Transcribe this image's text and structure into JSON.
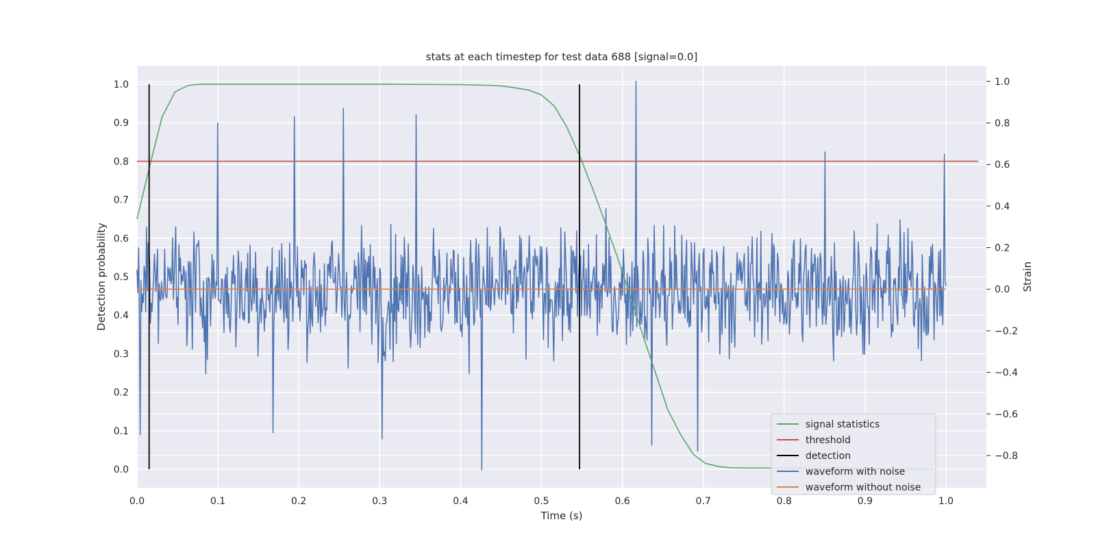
{
  "chart_data": {
    "type": "line",
    "title": "stats at each timestep for test data 688 [signal=0.0]",
    "xlabel": "Time (s)",
    "ylabel": "Detection probability",
    "y2label": "Strain",
    "xlim": [
      0.0,
      1.05
    ],
    "ylim": [
      -0.048,
      1.048
    ],
    "y2lim": [
      -0.955,
      1.075
    ],
    "x_ticks": [
      "0.0",
      "0.1",
      "0.2",
      "0.3",
      "0.4",
      "0.5",
      "0.6",
      "0.7",
      "0.8",
      "0.9",
      "1.0"
    ],
    "y_ticks": [
      "0.0",
      "0.1",
      "0.2",
      "0.3",
      "0.4",
      "0.5",
      "0.6",
      "0.7",
      "0.8",
      "0.9",
      "1.0"
    ],
    "y2_ticks": [
      "−0.8",
      "−0.6",
      "−0.4",
      "−0.2",
      "0.0",
      "0.2",
      "0.4",
      "0.6",
      "0.8",
      "1.0"
    ],
    "grid": true,
    "legend_position": "lower right",
    "legend": [
      {
        "label": "signal statistics",
        "color": "#55a868"
      },
      {
        "label": "threshold",
        "color": "#c44e52"
      },
      {
        "label": "detection",
        "color": "#000000"
      },
      {
        "label": "waveform with noise",
        "color": "#4c72b0"
      },
      {
        "label": "waveform without noise",
        "color": "#dd8452"
      }
    ],
    "series": [
      {
        "name": "signal statistics",
        "axis": "left",
        "color": "#55a868",
        "x": [
          0.0,
          0.016,
          0.031,
          0.047,
          0.063,
          0.078,
          0.1,
          0.2,
          0.3,
          0.4,
          0.42,
          0.44,
          0.453,
          0.469,
          0.484,
          0.5,
          0.516,
          0.531,
          0.547,
          0.563,
          0.578,
          0.594,
          0.609,
          0.625,
          0.641,
          0.656,
          0.672,
          0.688,
          0.703,
          0.719,
          0.734,
          0.75,
          0.8,
          0.9,
          0.984
        ],
        "y": [
          0.65,
          0.79,
          0.915,
          0.98,
          0.997,
          1.0,
          1.0,
          1.0,
          1.0,
          0.999,
          0.998,
          0.997,
          0.995,
          0.99,
          0.985,
          0.972,
          0.943,
          0.89,
          0.815,
          0.73,
          0.645,
          0.55,
          0.455,
          0.35,
          0.25,
          0.155,
          0.09,
          0.038,
          0.015,
          0.007,
          0.004,
          0.003,
          0.003,
          0.002,
          0.0
        ]
      },
      {
        "name": "threshold",
        "axis": "left",
        "color": "#c44e52",
        "x": [
          0.0,
          1.04
        ],
        "y": [
          0.8,
          0.8
        ]
      },
      {
        "name": "waveform without noise",
        "axis": "right",
        "color": "#dd8452",
        "x": [
          0.0,
          1.0
        ],
        "y": [
          0.0,
          0.0
        ]
      }
    ],
    "detections": [
      {
        "x": 0.015,
        "y_range": [
          0.0,
          1.0
        ]
      },
      {
        "x": 0.547,
        "y_range": [
          0.0,
          1.0
        ]
      }
    ],
    "noise_waveform": {
      "name": "waveform with noise",
      "axis": "right",
      "color": "#4c72b0",
      "x_range": [
        0.0,
        1.0
      ],
      "n_points": 1024,
      "typical_range": [
        -0.5,
        0.5
      ],
      "peaks": [
        {
          "x": 0.004,
          "y": -0.7
        },
        {
          "x": 0.1,
          "y": 0.8
        },
        {
          "x": 0.195,
          "y": 0.83
        },
        {
          "x": 0.255,
          "y": 0.87
        },
        {
          "x": 0.345,
          "y": 0.84
        },
        {
          "x": 0.617,
          "y": 1.0
        },
        {
          "x": 0.426,
          "y": -0.87
        },
        {
          "x": 0.168,
          "y": -0.69
        },
        {
          "x": 0.303,
          "y": -0.72
        },
        {
          "x": 0.636,
          "y": -0.75
        },
        {
          "x": 0.693,
          "y": -0.78
        },
        {
          "x": 0.85,
          "y": 0.66
        },
        {
          "x": 0.998,
          "y": 0.65
        }
      ]
    }
  }
}
